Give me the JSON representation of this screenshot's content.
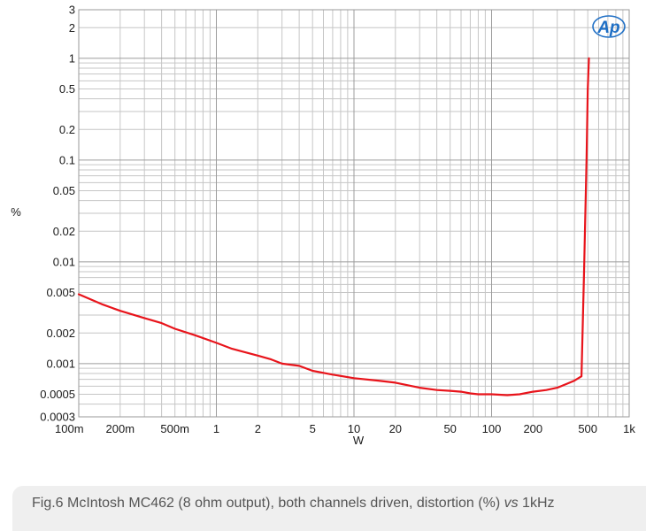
{
  "chart_data": {
    "type": "line",
    "xscale": "log",
    "yscale": "log",
    "xlabel": "W",
    "ylabel": "%",
    "xlim": [
      0.1,
      1000
    ],
    "ylim": [
      0.0003,
      3
    ],
    "grid": true,
    "x_ticks": [
      {
        "v": 0.1,
        "label": "100m"
      },
      {
        "v": 0.2,
        "label": "200m"
      },
      {
        "v": 0.5,
        "label": "500m"
      },
      {
        "v": 1,
        "label": "1"
      },
      {
        "v": 2,
        "label": "2"
      },
      {
        "v": 5,
        "label": "5"
      },
      {
        "v": 10,
        "label": "10"
      },
      {
        "v": 20,
        "label": "20"
      },
      {
        "v": 50,
        "label": "50"
      },
      {
        "v": 100,
        "label": "100"
      },
      {
        "v": 200,
        "label": "200"
      },
      {
        "v": 500,
        "label": "500"
      },
      {
        "v": 1000,
        "label": "1k"
      }
    ],
    "y_ticks": [
      {
        "v": 3,
        "label": "3"
      },
      {
        "v": 2,
        "label": "2"
      },
      {
        "v": 1,
        "label": "1"
      },
      {
        "v": 0.5,
        "label": "0.5"
      },
      {
        "v": 0.2,
        "label": "0.2"
      },
      {
        "v": 0.1,
        "label": "0.1"
      },
      {
        "v": 0.05,
        "label": "0.05"
      },
      {
        "v": 0.02,
        "label": "0.02"
      },
      {
        "v": 0.01,
        "label": "0.01"
      },
      {
        "v": 0.005,
        "label": "0.005"
      },
      {
        "v": 0.002,
        "label": "0.002"
      },
      {
        "v": 0.001,
        "label": "0.001"
      },
      {
        "v": 0.0005,
        "label": "0.0005"
      },
      {
        "v": 0.0003,
        "label": "0.0003"
      }
    ],
    "series": [
      {
        "color": "#e8141b",
        "points": [
          [
            0.1,
            0.0048
          ],
          [
            0.15,
            0.0038
          ],
          [
            0.2,
            0.0033
          ],
          [
            0.3,
            0.0028
          ],
          [
            0.4,
            0.0025
          ],
          [
            0.5,
            0.0022
          ],
          [
            0.7,
            0.0019
          ],
          [
            1.0,
            0.0016
          ],
          [
            1.3,
            0.0014
          ],
          [
            1.6,
            0.0013
          ],
          [
            2.0,
            0.0012
          ],
          [
            2.5,
            0.0011
          ],
          [
            3.0,
            0.001
          ],
          [
            4.0,
            0.00095
          ],
          [
            5.0,
            0.00085
          ],
          [
            7.0,
            0.00078
          ],
          [
            10,
            0.00072
          ],
          [
            15,
            0.00068
          ],
          [
            20,
            0.00065
          ],
          [
            30,
            0.00058
          ],
          [
            40,
            0.00055
          ],
          [
            50,
            0.00054
          ],
          [
            60,
            0.00053
          ],
          [
            70,
            0.00051
          ],
          [
            80,
            0.0005
          ],
          [
            100,
            0.0005
          ],
          [
            130,
            0.00049
          ],
          [
            160,
            0.0005
          ],
          [
            200,
            0.00053
          ],
          [
            250,
            0.00055
          ],
          [
            300,
            0.00058
          ],
          [
            350,
            0.00063
          ],
          [
            400,
            0.00068
          ],
          [
            450,
            0.00075
          ],
          [
            470,
            0.008
          ],
          [
            490,
            0.1
          ],
          [
            500,
            0.5
          ],
          [
            510,
            1.0
          ]
        ]
      }
    ]
  },
  "logo_text": "Ap",
  "caption": {
    "prefix": "Fig.6 McIntosh MC462 (8 ohm output), both channels driven, distortion (%) ",
    "vs": "vs",
    "suffix": " 1kHz"
  }
}
